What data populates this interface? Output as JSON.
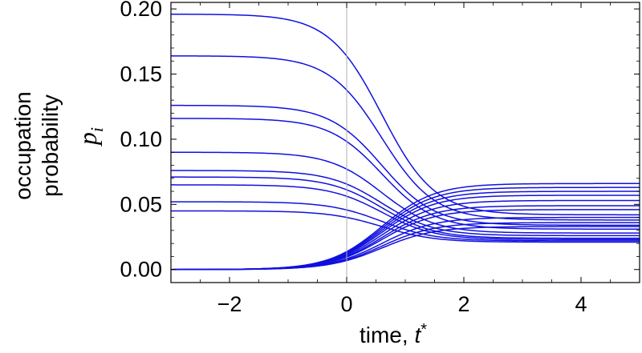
{
  "chart_data": {
    "type": "line",
    "xlabel_prefix": "time, ",
    "xlabel_var": "t",
    "xlabel_sup": "*",
    "ylabel_line1": "occupation",
    "ylabel_line2": "probability",
    "ylabel_var": "p",
    "ylabel_sub": "i",
    "xlim": [
      -3,
      5
    ],
    "ylim": [
      -0.01,
      0.205
    ],
    "x_ticks": [
      -2,
      0,
      2,
      4
    ],
    "x_tick_labels": [
      "−2",
      "0",
      "2",
      "4"
    ],
    "y_ticks": [
      0.0,
      0.05,
      0.1,
      0.15,
      0.2
    ],
    "y_tick_labels": [
      "0.00",
      "0.05",
      "0.10",
      "0.15",
      "0.20"
    ],
    "vertical_line_x": 0,
    "line_color": "#1010e0",
    "grid": false,
    "transition": {
      "center": 0.6,
      "width": 0.45
    },
    "series": [
      {
        "initial": 0.196,
        "final": 0.042
      },
      {
        "initial": 0.164,
        "final": 0.038
      },
      {
        "initial": 0.126,
        "final": 0.034
      },
      {
        "initial": 0.116,
        "final": 0.031
      },
      {
        "initial": 0.09,
        "final": 0.028
      },
      {
        "initial": 0.076,
        "final": 0.026
      },
      {
        "initial": 0.071,
        "final": 0.024
      },
      {
        "initial": 0.065,
        "final": 0.023
      },
      {
        "initial": 0.052,
        "final": 0.022
      },
      {
        "initial": 0.045,
        "final": 0.021
      },
      {
        "initial": 0.0,
        "final": 0.066
      },
      {
        "initial": 0.0,
        "final": 0.063
      },
      {
        "initial": 0.0,
        "final": 0.06
      },
      {
        "initial": 0.0,
        "final": 0.057
      },
      {
        "initial": 0.0,
        "final": 0.053
      },
      {
        "initial": 0.0,
        "final": 0.049
      },
      {
        "initial": 0.0,
        "final": 0.046
      },
      {
        "initial": 0.0,
        "final": 0.04
      },
      {
        "initial": 0.0,
        "final": 0.036
      },
      {
        "initial": 0.0,
        "final": 0.033
      }
    ]
  }
}
